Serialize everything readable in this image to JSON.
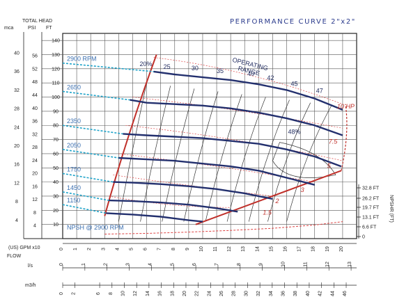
{
  "chart_data": {
    "type": "line",
    "title": "PERFORMANCE CURVE 2\"x2\"",
    "head_axis": {
      "title": "TOTAL HEAD",
      "units": [
        "mca",
        "PSI",
        "FT"
      ],
      "mca_ticks": [
        "4",
        "8",
        "12",
        "16",
        "20",
        "24",
        "28",
        "32",
        "36",
        "40"
      ],
      "psi_ticks": [
        "4",
        "8",
        "12",
        "16",
        "20",
        "24",
        "28",
        "32",
        "36",
        "40",
        "44",
        "48",
        "52",
        "56"
      ],
      "ft_ticks": [
        "10",
        "20",
        "30",
        "40",
        "50",
        "60",
        "70",
        "80",
        "90",
        "100",
        "110",
        "120",
        "130",
        "140"
      ],
      "ft_range": [
        0,
        145
      ]
    },
    "flow_axes": {
      "label": "FLOW",
      "gpm_label": "(US) GPM x10",
      "gpm_ticks": [
        "0",
        "1",
        "2",
        "3",
        "4",
        "5",
        "6",
        "7",
        "8",
        "9",
        "10",
        "11",
        "12",
        "13",
        "14",
        "15",
        "16",
        "17",
        "18",
        "19",
        "20"
      ],
      "gpm_range": [
        0,
        21
      ],
      "ls_label": "l/s",
      "ls_ticks": [
        "0",
        "1",
        "2",
        "3",
        "4",
        "5",
        "6",
        "7",
        "8",
        "9",
        "10",
        "11",
        "12",
        "13"
      ],
      "m3h_label": "m3/h",
      "m3h_ticks": [
        "0",
        "2",
        "6",
        "8",
        "10",
        "12",
        "14",
        "16",
        "18",
        "20",
        "22",
        "24",
        "26",
        "28",
        "30",
        "32",
        "34",
        "36",
        "38",
        "40",
        "42",
        "44",
        "46"
      ]
    },
    "npshr_axis": {
      "title": "NPSHR (FT)",
      "ticks": [
        "32.8 FT",
        "26.2 FT",
        "19.7 FT",
        "13.1 FT",
        "6.6 FT",
        "0"
      ]
    },
    "series": [
      {
        "name": "2900 RPM",
        "x": [
          6.5,
          8,
          10,
          12,
          14,
          16,
          18,
          20
        ],
        "y": [
          118,
          116,
          114,
          112,
          109,
          105,
          99,
          91
        ]
      },
      {
        "name": "2650",
        "x": [
          4.8,
          6,
          8,
          10,
          12,
          14,
          16,
          18,
          20
        ],
        "y": [
          98,
          96,
          95,
          94,
          92,
          89,
          85,
          80,
          73
        ]
      },
      {
        "name": "2350",
        "x": [
          4.3,
          6,
          8,
          10,
          12,
          14,
          16,
          18,
          19.9
        ],
        "y": [
          74,
          73,
          72,
          71,
          69,
          67,
          63,
          58,
          51
        ]
      },
      {
        "name": "2050",
        "x": [
          4,
          6,
          8,
          10,
          12,
          14,
          16,
          18
        ],
        "y": [
          57,
          56,
          55,
          53,
          51,
          48,
          43,
          38
        ]
      },
      {
        "name": "1750",
        "x": [
          3.6,
          5,
          7,
          9,
          11,
          13,
          15
        ],
        "y": [
          40,
          39.5,
          38.5,
          37,
          35,
          32,
          28
        ]
      },
      {
        "name": "1450",
        "x": [
          3.3,
          5,
          7,
          9,
          11,
          12.5
        ],
        "y": [
          27,
          26.5,
          25.5,
          24,
          21.5,
          19
        ]
      },
      {
        "name": "1150",
        "x": [
          3.1,
          5,
          7,
          9,
          10
        ],
        "y": [
          18,
          17,
          15.5,
          13,
          12
        ]
      }
    ],
    "npsh_curve": {
      "name": "NPSH @ 2900 RPM",
      "x": [
        3,
        6,
        9,
        12,
        15,
        18,
        20
      ],
      "y": [
        3.2,
        3.7,
        4.6,
        5.8,
        7.3,
        9.6,
        12
      ]
    },
    "efficiency_labels": [
      "20%",
      "25",
      "30",
      "35",
      "40",
      "42",
      "45",
      "47",
      "48%"
    ],
    "hp_labels": [
      "10 HP",
      "7.5",
      "5",
      "3",
      "2",
      "1.5"
    ],
    "annotations": [
      "OPERATING RANGE"
    ]
  }
}
